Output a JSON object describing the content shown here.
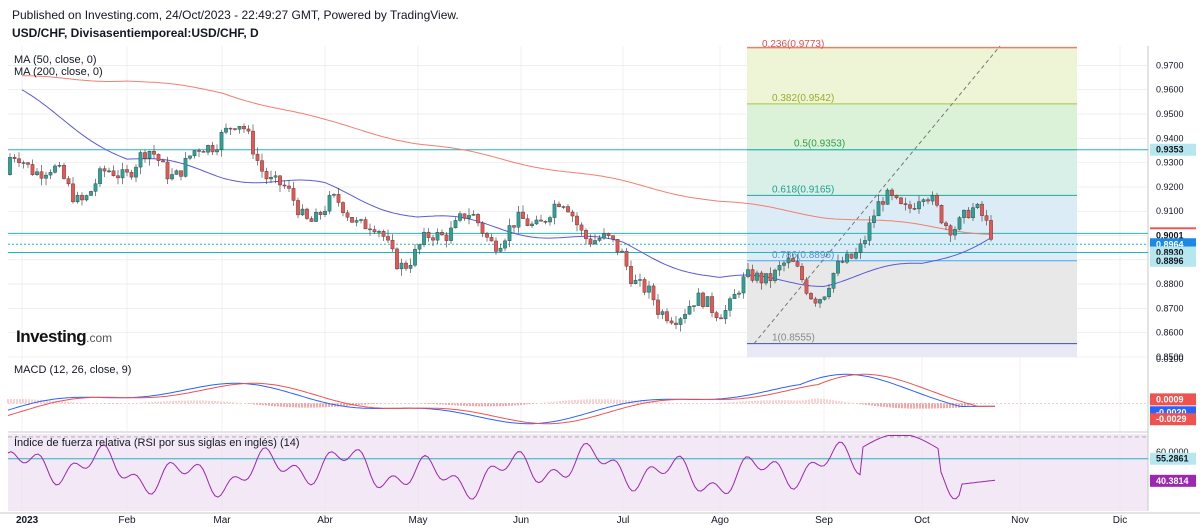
{
  "header": {
    "published": "Published on Investing.com, 24/Oct/2023 - 22:49:27 GMT, Powered by TradingView.",
    "symbol": "USD/CHF, Divisasentiemporeal:USD/CHF, D"
  },
  "logo": {
    "brand": "Investing",
    "suffix": ".com"
  },
  "indicators": {
    "ma50": "MA (50, close, 0)",
    "ma200": "MA (200, close, 0)",
    "macd": "MACD (12, 26, close, 9)",
    "rsi": "Índice de fuerza relativa (RSI por sus siglas en inglés) (14)"
  },
  "colors": {
    "up": "#26a69a",
    "down": "#ef5350",
    "ma50": "#5b5bd6",
    "ma200": "#f08070",
    "macd": "#2962ff",
    "signal": "#ef5350",
    "rsi": "#9c27b0",
    "grid": "#e6e6e6",
    "level": "#22b5bd"
  },
  "chart_data": [
    {
      "type": "candlestick",
      "title": "USD/CHF, Divisasentiemporeal:USD/CHF, D",
      "ylim": [
        0.85,
        0.978
      ],
      "yticks": [
        0.85,
        0.86,
        0.87,
        0.88,
        0.89,
        0.9,
        0.91,
        0.92,
        0.93,
        0.94,
        0.95,
        0.96,
        0.97
      ],
      "xticks": [
        "2023",
        "Feb",
        "Mar",
        "Abr",
        "May",
        "Jun",
        "Jul",
        "Ago",
        "Sep",
        "Oct",
        "Nov",
        "Dic"
      ],
      "price_path": [
        [
          "2023",
          0.925
        ],
        [
          "Feb",
          0.923
        ],
        [
          "Mar",
          0.942
        ],
        [
          "Abr",
          0.908
        ],
        [
          "May",
          0.895
        ],
        [
          "Jun",
          0.908
        ],
        [
          "Jul",
          0.899
        ],
        [
          "Jul",
          0.86
        ],
        [
          "Ago",
          0.878
        ],
        [
          "Sep",
          0.883
        ],
        [
          "Oct",
          0.92
        ],
        [
          "Oct",
          0.8964
        ]
      ],
      "ma50_path": [
        [
          "2023",
          0.958
        ],
        [
          "Feb",
          0.932
        ],
        [
          "Mar",
          0.925
        ],
        [
          "Abr",
          0.92
        ],
        [
          "May",
          0.908
        ],
        [
          "Jun",
          0.902
        ],
        [
          "Jul",
          0.896
        ],
        [
          "Ago",
          0.882
        ],
        [
          "Sep",
          0.881
        ],
        [
          "Oct",
          0.888
        ],
        [
          "Oct",
          0.9001
        ]
      ],
      "ma200_path": [
        [
          "2023",
          0.965
        ],
        [
          "Feb",
          0.964
        ],
        [
          "Mar",
          0.959
        ],
        [
          "Abr",
          0.947
        ],
        [
          "May",
          0.938
        ],
        [
          "Jun",
          0.93
        ],
        [
          "Jul",
          0.922
        ],
        [
          "Ago",
          0.914
        ],
        [
          "Sep",
          0.908
        ],
        [
          "Oct",
          0.904
        ],
        [
          "Oct",
          0.9009
        ]
      ],
      "price_labels": [
        {
          "value": 0.9353,
          "label": "0.9353",
          "style": "fib"
        },
        {
          "value": 0.9009,
          "label": "0.9009",
          "style": "ma200"
        },
        {
          "value": 0.9001,
          "label": "0.9001",
          "style": "ma50"
        },
        {
          "value": 0.8964,
          "label": "0.8964",
          "style": "last"
        },
        {
          "value": 0.893,
          "label": "0.8930",
          "style": "fib"
        },
        {
          "value": 0.8896,
          "label": "0.8896",
          "style": "fib"
        }
      ],
      "horizontal_levels": [
        0.9353,
        0.9009,
        0.8964,
        0.893
      ],
      "fibonacci": {
        "range": [
          "Ago",
          "Oct"
        ],
        "levels": [
          {
            "value": 0.9773,
            "label": "0.236(0.9773)"
          },
          {
            "value": 0.9542,
            "label": "0.382(0.9542)"
          },
          {
            "value": 0.9353,
            "label": "0.5(0.9353)"
          },
          {
            "value": 0.9165,
            "label": "0.618(0.9165)"
          },
          {
            "value": 0.8896,
            "label": "0.786(0.8896)"
          },
          {
            "value": 0.8555,
            "label": "1(0.8555)"
          }
        ]
      }
    },
    {
      "type": "line",
      "title": "MACD (12, 26, close, 9)",
      "value_labels": [
        {
          "value": 0.0009,
          "label": "0.0009"
        },
        {
          "value": -0.002,
          "label": "-0.0020"
        },
        {
          "value": -0.0029,
          "label": "-0.0029"
        }
      ],
      "ylim": [
        -0.006,
        0.01
      ],
      "yticks": [
        0.01
      ]
    },
    {
      "type": "line",
      "title": "Índice de fuerza relativa (RSI por sus siglas en inglés) (14)",
      "ylim": [
        20,
        72
      ],
      "yticks": [
        60
      ],
      "ytick_labels": [
        "60.0000"
      ],
      "value_labels": [
        {
          "value": 55.2861,
          "label": "55.2861"
        },
        {
          "value": 40.3814,
          "label": "40.3814"
        }
      ]
    }
  ]
}
